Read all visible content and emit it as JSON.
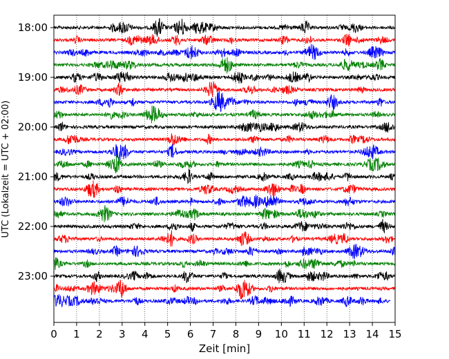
{
  "chart_data": {
    "type": "line",
    "title": "",
    "xlabel": "Zeit  [min]",
    "ylabel": "UTC (Lokalzeit = UTC + 02:00)",
    "xlim": [
      0,
      15
    ],
    "xticks": [
      0,
      1,
      2,
      3,
      4,
      5,
      6,
      7,
      8,
      9,
      10,
      11,
      12,
      13,
      14,
      15
    ],
    "xgrid": "dotted vertical at each minute",
    "ytick_labels": [
      "18:00",
      "19:00",
      "20:00",
      "21:00",
      "22:00",
      "23:00"
    ],
    "ytick_hours": [
      18,
      19,
      20,
      21,
      22,
      23
    ],
    "trace_start_hour": 18.0,
    "trace_interval_minutes": 15,
    "trace_count": 23,
    "trace_colors": [
      "#000000",
      "#ff0000",
      "#0000ff",
      "#008000"
    ],
    "last_trace_end_minute": 14.8
  }
}
